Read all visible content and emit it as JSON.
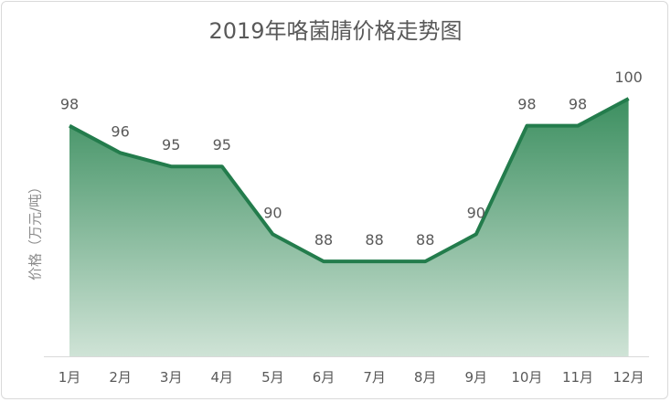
{
  "chart_data": {
    "type": "area",
    "title": "2019年咯菌腈价格走势图",
    "xlabel": "",
    "ylabel": "价格（万元/吨）",
    "categories": [
      "1月",
      "2月",
      "3月",
      "4月",
      "5月",
      "6月",
      "7月",
      "8月",
      "9月",
      "10月",
      "11月",
      "12月"
    ],
    "values": [
      98,
      96,
      95,
      95,
      90,
      88,
      88,
      88,
      90,
      98,
      98,
      100
    ],
    "ylim": [
      81,
      100
    ],
    "grid": false,
    "legend": "none",
    "colors": {
      "line": "#237c4c",
      "fill_top": "#3c8f60",
      "fill_bottom": "#cfe3d6"
    }
  }
}
